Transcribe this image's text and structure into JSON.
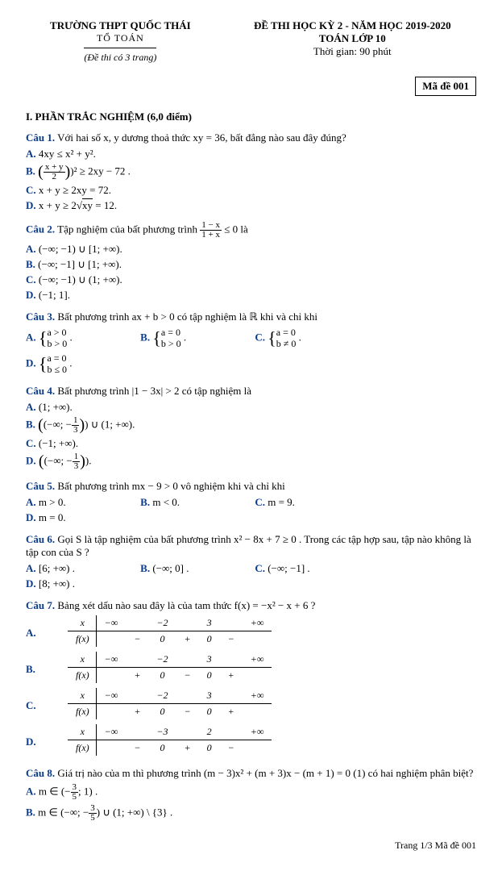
{
  "header": {
    "school": "TRƯỜNG THPT QUỐC THÁI",
    "dept": "TỔ TOÁN",
    "note": "(Đề thi có 3 trang)",
    "title1": "ĐỀ THI HỌC KỲ 2 - NĂM HỌC 2019-2020",
    "title2": "TOÁN LỚP 10",
    "time": "Thời gian: 90 phút",
    "code": "Mã đề  001"
  },
  "section": "I. PHẦN TRẮC NGHIỆM (6,0 điểm)",
  "q1": {
    "num": "Câu 1.",
    "text": " Với hai số x, y dương thoả thức xy = 36, bất đẳng nào sau đây đúng?",
    "a": "4xy ≤ x² + y².",
    "b_pre": "(",
    "b_num": "x + y",
    "b_den": "2",
    "b_post": ")² ≥ 2xy − 72 .",
    "c": "x + y ≥ 2xy = 72.",
    "d_pre": "x + y ≥ 2",
    "d_root": "xy",
    "d_post": " = 12."
  },
  "q2": {
    "num": "Câu 2.",
    "text_pre": " Tập nghiệm của bất phương trình ",
    "frac_n": "1 − x",
    "frac_d": "1 + x",
    "text_post": " ≤ 0 là",
    "a": "(−∞; −1) ∪ [1; +∞).",
    "b": "(−∞; −1] ∪ [1; +∞).",
    "c": "(−∞; −1) ∪ (1; +∞).",
    "d": "(−1; 1]."
  },
  "q3": {
    "num": "Câu 3.",
    "text": " Bất phương trình ax + b > 0 có tập nghiệm là ℝ khi và chỉ khi",
    "a1": "a > 0",
    "a2": "b > 0",
    "b1": "a = 0",
    "b2": "b > 0",
    "c1": "a = 0",
    "c2": "b ≠ 0",
    "d1": "a = 0",
    "d2": "b ≤ 0"
  },
  "q4": {
    "num": "Câu 4.",
    "text": " Bất phương trình |1 − 3x| > 2 có tập nghiệm là",
    "a": "(1; +∞).",
    "b_pre": "(−∞; −",
    "b_n": "1",
    "b_d": "3",
    "b_post": ") ∪ (1; +∞).",
    "c": "(−1; +∞).",
    "d_pre": "(−∞; −",
    "d_n": "1",
    "d_d": "3",
    "d_post": ")."
  },
  "q5": {
    "num": "Câu 5.",
    "text": " Bất phương trình mx − 9 > 0 vô nghiệm khi và chỉ khi",
    "a": "m > 0.",
    "b": "m < 0.",
    "c": "m = 9.",
    "d": "m = 0."
  },
  "q6": {
    "num": "Câu 6.",
    "text": " Gọi S là tập nghiệm của bất phương trình x² − 8x + 7 ≥ 0 . Trong các tập hợp sau, tập nào không là tập con của S ?",
    "a": "[6; +∞) .",
    "b": "(−∞; 0] .",
    "c": "(−∞; −1] .",
    "d": "[8; +∞) ."
  },
  "q7": {
    "num": "Câu 7.",
    "text": " Bảng xét dấu nào sau đây là của tam thức f(x) = −x² − x + 6 ?",
    "xlabel": "x",
    "fxlabel": "f(x)",
    "tA": {
      "v": [
        "−∞",
        "",
        "−2",
        "",
        "3",
        "",
        "+∞"
      ],
      "s": [
        "",
        "−",
        "0",
        "+",
        "0",
        "−",
        ""
      ]
    },
    "tB": {
      "v": [
        "−∞",
        "",
        "−2",
        "",
        "3",
        "",
        "+∞"
      ],
      "s": [
        "",
        "+",
        "0",
        "−",
        "0",
        "+",
        ""
      ]
    },
    "tC": {
      "v": [
        "−∞",
        "",
        "−2",
        "",
        "3",
        "",
        "+∞"
      ],
      "s": [
        "",
        "+",
        "0",
        "−",
        "0",
        "+",
        ""
      ]
    },
    "tD": {
      "v": [
        "−∞",
        "",
        "−3",
        "",
        "2",
        "",
        "+∞"
      ],
      "s": [
        "",
        "−",
        "0",
        "+",
        "0",
        "−",
        ""
      ]
    },
    "lblA": "A.",
    "lblB": "B.",
    "lblC": "C.",
    "lblD": "D."
  },
  "q8": {
    "num": "Câu 8.",
    "text": " Giá trị nào của m thì phương trình (m − 3)x² + (m + 3)x − (m + 1) = 0 (1) có hai nghiệm phân biệt?",
    "a_pre": "m ∈ (−",
    "a_n": "3",
    "a_d": "5",
    "a_post": "; 1) .",
    "b_pre": "m ∈ (−∞; −",
    "b_n": "3",
    "b_d": "5",
    "b_post": ") ∪ (1; +∞) \\ {3} ."
  },
  "footer": "Trang 1/3 Mã đề 001"
}
